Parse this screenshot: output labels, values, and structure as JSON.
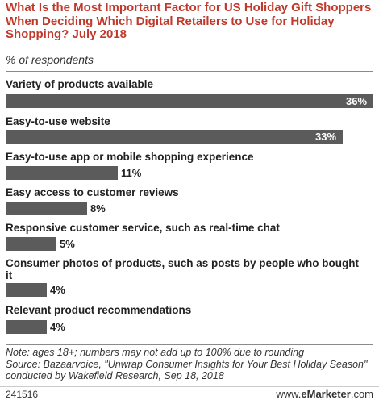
{
  "header": {
    "title": "What Is the Most Important Factor for US Holiday Gift Shoppers When Deciding Which Digital Retailers to Use for Holiday Shopping? July 2018",
    "subtitle": "% of respondents"
  },
  "chart_data": {
    "type": "bar",
    "orientation": "horizontal",
    "title": "What Is the Most Important Factor for US Holiday Gift Shoppers When Deciding Which Digital Retailers to Use for Holiday Shopping? July 2018",
    "subtitle": "% of respondents",
    "categories": [
      "Variety of products available",
      "Easy-to-use website",
      "Easy-to-use app or mobile shopping experience",
      "Easy access to customer reviews",
      "Responsive customer service, such as real-time chat",
      "Consumer photos of products, such as posts by people who bought it",
      "Relevant product recommendations"
    ],
    "values": [
      36,
      33,
      11,
      8,
      5,
      4,
      4
    ],
    "value_labels": [
      "36%",
      "33%",
      "11%",
      "8%",
      "5%",
      "4%",
      "4%"
    ],
    "xlim": [
      0,
      36
    ],
    "grid": false,
    "bar_color": "#5b5b5b"
  },
  "footer": {
    "note": "Note: ages 18+; numbers may not add up to 100% due to rounding",
    "source": "Source: Bazaarvoice, \"Unwrap Consumer Insights for Your Best Holiday Season\" conducted by Wakefield Research, Sep 18, 2018",
    "chart_id": "241516",
    "brand_prefix": "www.",
    "brand_name": "eMarketer",
    "brand_suffix": ".com"
  },
  "colors": {
    "title": "#c0392b",
    "bar": "#5b5b5b",
    "rule": "#8a8a8a"
  }
}
